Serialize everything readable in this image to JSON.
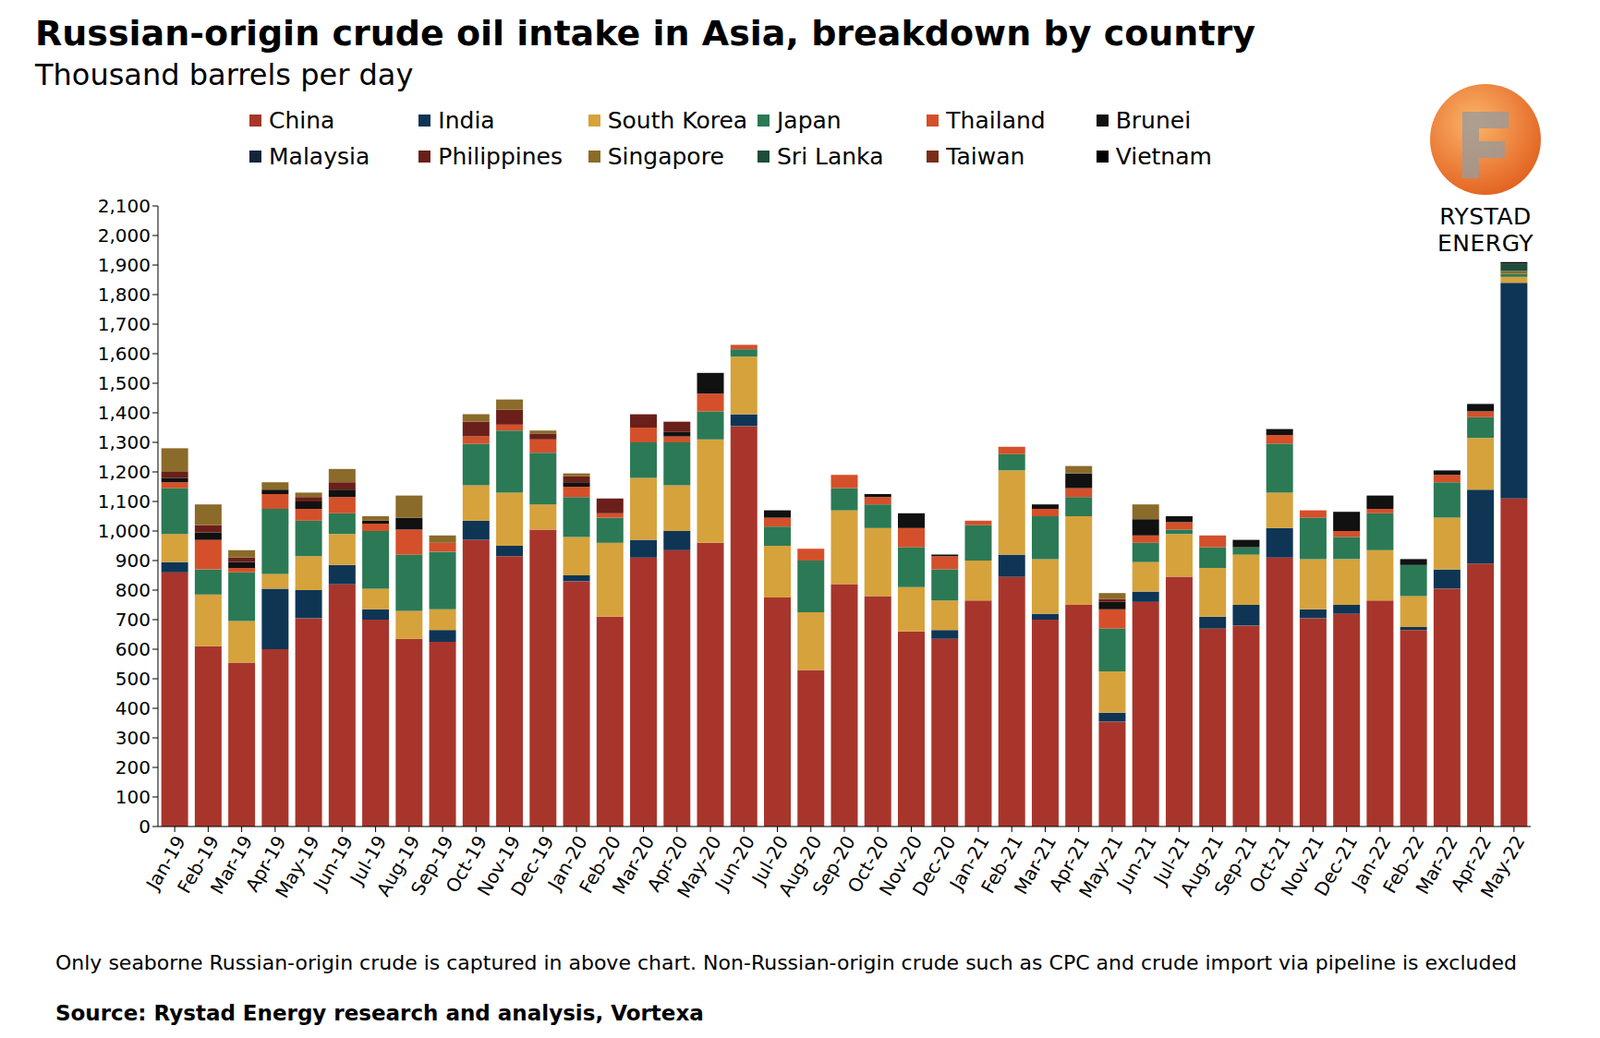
{
  "chart_data": {
    "type": "bar",
    "title": "Russian-origin crude oil intake in Asia, breakdown by country",
    "subtitle": "Thousand barrels per day",
    "logo_text": "RYSTAD ENERGY",
    "footnote": "Only seaborne Russian-origin crude is captured in above chart. Non-Russian-origin crude such as CPC and crude import via pipeline is excluded",
    "source": "Source: Rystad Energy research and analysis,  Vortexa",
    "stacked": true,
    "grid": false,
    "legend": "top",
    "data_labels": false,
    "categories": [
      "Jan-19",
      "Feb-19",
      "Mar-19",
      "Apr-19",
      "May-19",
      "Jun-19",
      "Jul-19",
      "Aug-19",
      "Sep-19",
      "Oct-19",
      "Nov-19",
      "Dec-19",
      "Jan-20",
      "Feb-20",
      "Mar-20",
      "Apr-20",
      "May-20",
      "Jun-20",
      "Jul-20",
      "Aug-20",
      "Sep-20",
      "Oct-20",
      "Nov-20",
      "Dec-20",
      "Jan-21",
      "Feb-21",
      "Mar-21",
      "Apr-21",
      "May-21",
      "Jun-21",
      "Jul-21",
      "Aug-21",
      "Sep-21",
      "Oct-21",
      "Nov-21",
      "Dec-21",
      "Jan-22",
      "Feb-22",
      "Mar-22",
      "Apr-22",
      "May-22"
    ],
    "ylim": [
      0,
      2100
    ],
    "yticks": [
      0,
      100,
      200,
      300,
      400,
      500,
      600,
      700,
      800,
      900,
      {
        "value": 1000,
        "label": "1,000"
      },
      {
        "value": 1100,
        "label": "1,100"
      },
      {
        "value": 1200,
        "label": "1,200"
      },
      {
        "value": 1300,
        "label": "1,300"
      },
      {
        "value": 1400,
        "label": "1,400"
      },
      {
        "value": 1500,
        "label": "1,500"
      },
      {
        "value": 1600,
        "label": "1,600"
      },
      {
        "value": 1700,
        "label": "1,700"
      },
      {
        "value": 1800,
        "label": "1,800"
      },
      {
        "value": 1900,
        "label": "1,900"
      },
      {
        "value": 2000,
        "label": "2,000"
      },
      {
        "value": 2100,
        "label": "2,100"
      }
    ],
    "series": [
      {
        "name": "China",
        "color": "#a8352b",
        "values": [
          860,
          610,
          555,
          600,
          705,
          820,
          700,
          635,
          625,
          970,
          915,
          1005,
          830,
          710,
          910,
          935,
          960,
          1355,
          775,
          530,
          820,
          780,
          660,
          635,
          765,
          845,
          700,
          750,
          355,
          760,
          845,
          670,
          680,
          910,
          705,
          720,
          765,
          665,
          805,
          890,
          1110
        ]
      },
      {
        "name": "India",
        "color": "#0f3555",
        "values": [
          35,
          0,
          0,
          205,
          95,
          65,
          35,
          0,
          40,
          65,
          35,
          0,
          20,
          0,
          60,
          65,
          0,
          40,
          0,
          0,
          0,
          0,
          0,
          30,
          0,
          75,
          20,
          0,
          30,
          35,
          0,
          40,
          70,
          100,
          30,
          30,
          0,
          10,
          65,
          250,
          730
        ]
      },
      {
        "name": "South Korea",
        "color": "#d6a23c",
        "values": [
          95,
          175,
          140,
          50,
          115,
          105,
          70,
          95,
          70,
          120,
          180,
          85,
          130,
          250,
          210,
          155,
          350,
          195,
          175,
          195,
          250,
          230,
          150,
          100,
          135,
          285,
          185,
          300,
          140,
          100,
          145,
          165,
          170,
          120,
          170,
          155,
          170,
          105,
          175,
          175,
          20
        ]
      },
      {
        "name": "Japan",
        "color": "#2b7a55",
        "values": [
          155,
          85,
          165,
          220,
          120,
          70,
          195,
          190,
          195,
          140,
          210,
          175,
          135,
          85,
          120,
          145,
          95,
          25,
          65,
          175,
          75,
          80,
          135,
          105,
          120,
          55,
          145,
          65,
          145,
          65,
          15,
          70,
          25,
          165,
          140,
          75,
          125,
          105,
          120,
          70,
          10
        ]
      },
      {
        "name": "Thailand",
        "color": "#d4502a",
        "values": [
          20,
          100,
          15,
          50,
          40,
          55,
          25,
          85,
          30,
          25,
          20,
          45,
          35,
          15,
          50,
          20,
          60,
          15,
          30,
          40,
          45,
          25,
          65,
          45,
          15,
          25,
          25,
          30,
          65,
          25,
          25,
          40,
          0,
          30,
          25,
          20,
          15,
          0,
          25,
          20,
          0
        ]
      },
      {
        "name": "Brunei",
        "color": "#111111",
        "values": [
          15,
          25,
          20,
          15,
          25,
          25,
          10,
          40,
          0,
          0,
          0,
          0,
          15,
          0,
          0,
          15,
          70,
          0,
          25,
          0,
          0,
          10,
          50,
          5,
          0,
          0,
          15,
          50,
          25,
          55,
          20,
          0,
          25,
          20,
          0,
          65,
          45,
          20,
          15,
          25,
          0
        ]
      },
      {
        "name": "Malaysia",
        "color": "#14243c",
        "values": [
          0,
          0,
          0,
          0,
          0,
          0,
          0,
          0,
          0,
          0,
          0,
          0,
          0,
          0,
          0,
          0,
          0,
          0,
          0,
          0,
          0,
          0,
          0,
          0,
          0,
          0,
          0,
          0,
          0,
          0,
          0,
          0,
          0,
          0,
          0,
          0,
          0,
          0,
          0,
          0,
          0
        ]
      },
      {
        "name": "Philippines",
        "color": "#6b1f1a",
        "values": [
          20,
          25,
          15,
          0,
          15,
          25,
          0,
          0,
          0,
          50,
          50,
          20,
          20,
          50,
          45,
          35,
          0,
          0,
          0,
          0,
          0,
          0,
          0,
          0,
          0,
          0,
          0,
          0,
          10,
          0,
          0,
          0,
          0,
          0,
          0,
          0,
          0,
          0,
          0,
          0,
          0
        ]
      },
      {
        "name": "Singapore",
        "color": "#8b6b2a",
        "values": [
          80,
          70,
          25,
          25,
          15,
          45,
          15,
          75,
          25,
          25,
          35,
          10,
          10,
          0,
          0,
          0,
          0,
          0,
          0,
          0,
          0,
          0,
          0,
          0,
          0,
          0,
          0,
          25,
          20,
          50,
          0,
          0,
          0,
          0,
          0,
          0,
          0,
          0,
          0,
          0,
          10
        ]
      },
      {
        "name": "Sri Lanka",
        "color": "#1e4d3a",
        "values": [
          0,
          0,
          0,
          0,
          0,
          0,
          0,
          0,
          0,
          0,
          0,
          0,
          0,
          0,
          0,
          0,
          0,
          0,
          0,
          0,
          0,
          0,
          0,
          0,
          0,
          0,
          0,
          0,
          0,
          0,
          0,
          0,
          0,
          0,
          0,
          0,
          0,
          0,
          0,
          0,
          25
        ]
      },
      {
        "name": "Taiwan",
        "color": "#7a2e1a",
        "values": [
          0,
          0,
          0,
          0,
          0,
          0,
          0,
          0,
          0,
          0,
          0,
          0,
          0,
          0,
          0,
          0,
          0,
          0,
          0,
          0,
          0,
          0,
          0,
          0,
          0,
          0,
          0,
          0,
          0,
          0,
          0,
          0,
          0,
          0,
          0,
          0,
          0,
          0,
          0,
          0,
          0
        ]
      },
      {
        "name": "Vietnam",
        "color": "#000000",
        "values": [
          0,
          0,
          0,
          0,
          0,
          0,
          0,
          0,
          0,
          0,
          0,
          0,
          0,
          0,
          0,
          0,
          0,
          0,
          0,
          0,
          0,
          0,
          0,
          0,
          0,
          0,
          0,
          0,
          0,
          0,
          0,
          0,
          0,
          0,
          0,
          0,
          0,
          0,
          0,
          0,
          5
        ]
      }
    ]
  }
}
